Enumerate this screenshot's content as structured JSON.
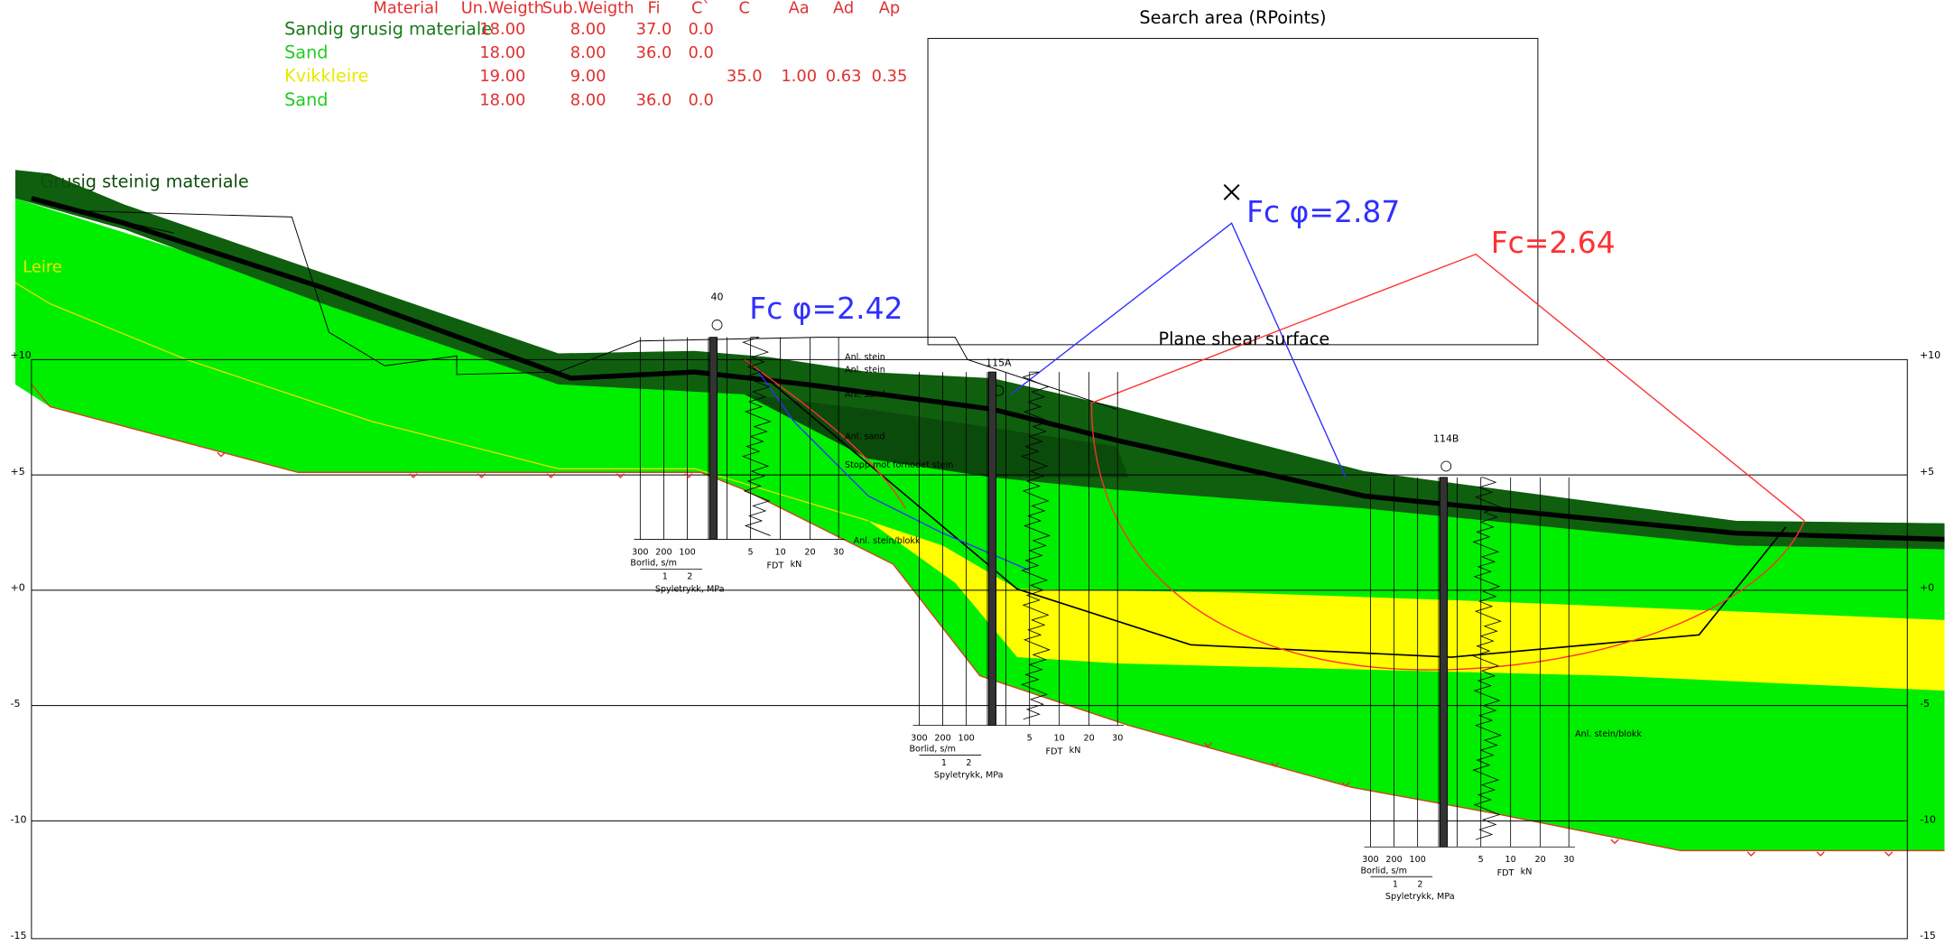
{
  "material_table": {
    "headers": [
      "Material",
      "Un.Weigth",
      "Sub.Weigth",
      "Fi",
      "C`",
      "C",
      "Aa",
      "Ad",
      "Ap"
    ],
    "rows": [
      {
        "material": "Sandig grusig materiale",
        "color": "#1a7a1a",
        "unit_weight": "18.00",
        "sub_weight": "8.00",
        "fi": "37.0",
        "c_prime": "0.0"
      },
      {
        "material": "Sand",
        "color": "#22cc22",
        "unit_weight": "18.00",
        "sub_weight": "8.00",
        "fi": "36.0",
        "c_prime": "0.0"
      },
      {
        "material": "Kvikkleire",
        "color": "#e8e800",
        "unit_weight": "19.00",
        "sub_weight": "9.00",
        "c": "35.0",
        "aa": "1.00",
        "ad": "0.63",
        "ap": "0.35"
      },
      {
        "material": "Sand",
        "color": "#22cc22",
        "unit_weight": "18.00",
        "sub_weight": "8.00",
        "fi": "36.0",
        "c_prime": "0.0"
      }
    ]
  },
  "layer_labels": [
    "Grusig steinig materiale",
    "Leire"
  ],
  "safety_factors": [
    "Fc φ=2.42",
    "Fc φ=2.87",
    "Fc=2.64"
  ],
  "search_area": "Search area (RPoints)",
  "plane_shear": "Plane shear surface",
  "boreholes": [
    "40",
    "115A",
    "114B"
  ],
  "elevations": [
    "+10",
    "+5",
    "+0",
    "-5",
    "-10",
    "-15"
  ],
  "borehole_axis": {
    "resistance_ticks": [
      "300",
      "200",
      "100"
    ],
    "force_ticks": [
      "5",
      "10",
      "20",
      "30"
    ],
    "resistance_label": "Borlid, s/m",
    "force_label": "FDT",
    "force_unit": "kN",
    "pressure_ticks": [
      "1",
      "2"
    ],
    "pressure_label": "Spyletrykk, MPa"
  },
  "annotations": [
    "Anl. stein",
    "Anl. stein",
    "Anl. sand",
    "Anl. sand",
    "Stopp mot fornodet stein",
    "Anl. stein/blokk"
  ]
}
